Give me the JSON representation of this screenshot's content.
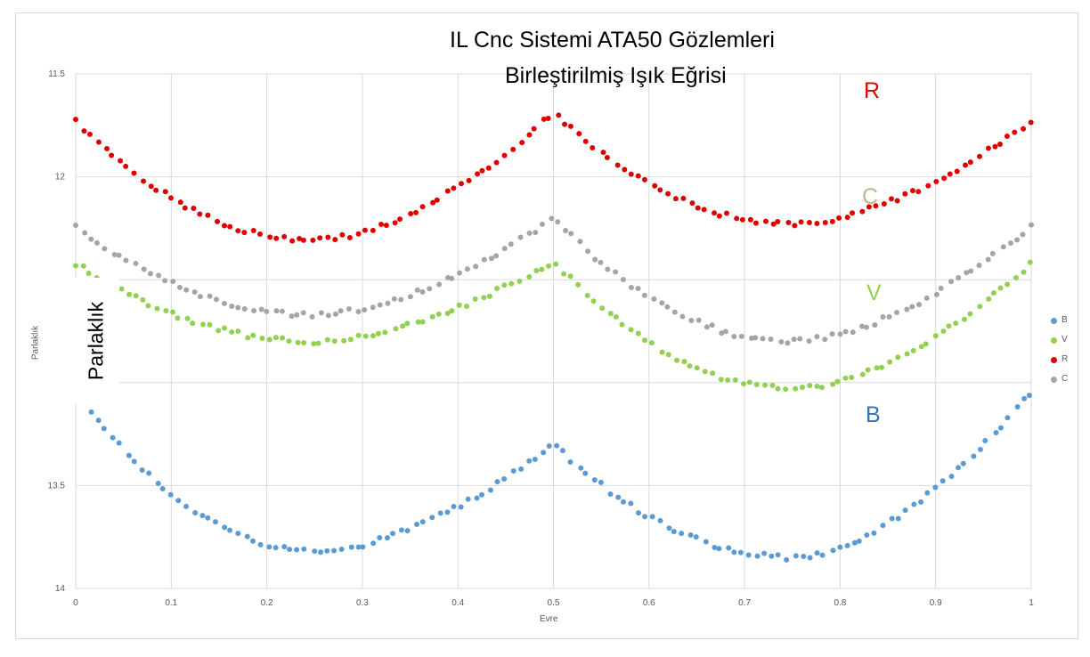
{
  "chart_data": {
    "type": "scatter",
    "title": "IL Cnc Sistemi ATA50 Gözlemleri",
    "subtitle": "Birleştirilmiş Işık Eğrisi",
    "xlabel": "Evre",
    "ylabel": "Parlaklık",
    "ylabel_overlay": "Parlaklık",
    "xlim": [
      0,
      1
    ],
    "ylim": [
      11.5,
      14
    ],
    "y_inverted": true,
    "x_ticks": [
      "0",
      "0.1",
      "0.2",
      "0.3",
      "0.4",
      "0.5",
      "0.6",
      "0.7",
      "0.8",
      "0.9",
      "1"
    ],
    "y_ticks": [
      "11.5",
      "12",
      "13.5",
      "14"
    ],
    "grid": true,
    "legend_position": "right",
    "series": [
      {
        "name": "B",
        "color": "#5b9bd5",
        "label": "B",
        "shape": {
          "a": 13.05,
          "b": 13.82,
          "c": 13.3,
          "d": 13.85,
          "min1": 13.57,
          "min2": 13.84
        }
      },
      {
        "name": "V",
        "color": "#92d050",
        "label": "V",
        "shape": {
          "a": 12.42,
          "b": 12.8,
          "c": 12.41,
          "d": 13.03,
          "min1": 12.87,
          "min2": 13.1
        }
      },
      {
        "name": "R",
        "color": "#e00000",
        "label": "R",
        "shape": {
          "a": 11.73,
          "b": 12.31,
          "c": 11.69,
          "d": 12.23,
          "min1": 12.2,
          "min2": 12.32
        }
      },
      {
        "name": "C",
        "color": "#a5a5a5",
        "label": "C",
        "shape": {
          "a": 12.24,
          "b": 12.67,
          "c": 12.2,
          "d": 12.8,
          "min1": 12.68,
          "min2": 12.81
        }
      }
    ]
  }
}
